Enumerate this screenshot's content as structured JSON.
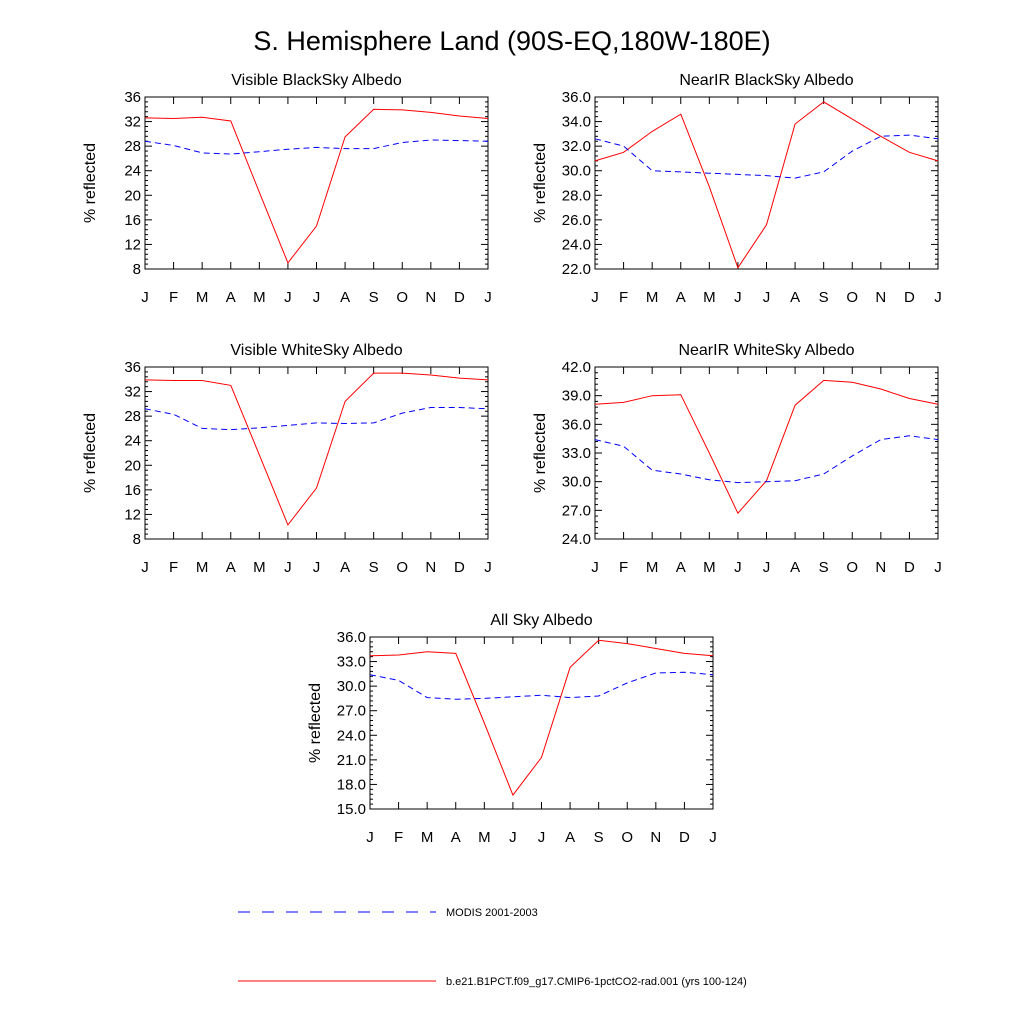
{
  "title": "S. Hemisphere Land (90S-EQ,180W-180E)",
  "months": [
    "J",
    "F",
    "M",
    "A",
    "M",
    "J",
    "J",
    "A",
    "S",
    "O",
    "N",
    "D",
    "J"
  ],
  "legend": [
    {
      "label": "MODIS 2001-2003",
      "color": "#0000ff",
      "style": "dashed"
    },
    {
      "label": "b.e21.B1PCT.f09_g17.CMIP6-1pctCO2-rad.001 (yrs 100-124)",
      "color": "#ff0000",
      "style": "solid"
    }
  ],
  "colors": {
    "model": "#ff0000",
    "modis": "#0000ff"
  },
  "chart_data": [
    {
      "type": "line",
      "title": "Visible BlackSky Albedo",
      "ylabel": "% reflected",
      "ylim": [
        8,
        36
      ],
      "yticks": [
        "8",
        "12",
        "16",
        "20",
        "24",
        "28",
        "32",
        "36"
      ],
      "x": [
        "J",
        "F",
        "M",
        "A",
        "M",
        "J",
        "J",
        "A",
        "S",
        "O",
        "N",
        "D",
        "J"
      ],
      "series": [
        {
          "values": [
            32.6,
            32.5,
            32.7,
            32.1,
            20.5,
            9.0,
            15.0,
            29.5,
            34.0,
            33.9,
            33.5,
            32.9,
            32.5
          ]
        },
        {
          "values": [
            28.8,
            28.1,
            26.9,
            26.7,
            27.1,
            27.5,
            27.8,
            27.6,
            27.6,
            28.6,
            29.0,
            28.9,
            28.8
          ]
        }
      ]
    },
    {
      "type": "line",
      "title": "NearIR BlackSky Albedo",
      "ylabel": "% reflected",
      "ylim": [
        22,
        36
      ],
      "yticks": [
        "22.0",
        "24.0",
        "26.0",
        "28.0",
        "30.0",
        "32.0",
        "34.0",
        "36.0"
      ],
      "x": [
        "J",
        "F",
        "M",
        "A",
        "M",
        "J",
        "J",
        "A",
        "S",
        "O",
        "N",
        "D",
        "J"
      ],
      "series": [
        {
          "values": [
            30.8,
            31.5,
            33.2,
            34.6,
            28.7,
            22.1,
            25.6,
            33.8,
            35.6,
            34.2,
            32.8,
            31.5,
            30.8
          ]
        },
        {
          "values": [
            32.6,
            32.0,
            30.0,
            29.9,
            29.8,
            29.7,
            29.6,
            29.4,
            29.9,
            31.6,
            32.8,
            32.9,
            32.6
          ]
        }
      ]
    },
    {
      "type": "line",
      "title": "Visible WhiteSky Albedo",
      "ylabel": "% reflected",
      "ylim": [
        8,
        36
      ],
      "yticks": [
        "8",
        "12",
        "16",
        "20",
        "24",
        "28",
        "32",
        "36"
      ],
      "x": [
        "J",
        "F",
        "M",
        "A",
        "M",
        "J",
        "J",
        "A",
        "S",
        "O",
        "N",
        "D",
        "J"
      ],
      "series": [
        {
          "values": [
            33.9,
            33.8,
            33.8,
            33.0,
            21.7,
            10.3,
            16.3,
            30.4,
            35.0,
            35.0,
            34.7,
            34.2,
            33.9
          ]
        },
        {
          "values": [
            29.2,
            28.3,
            26.0,
            25.8,
            26.1,
            26.5,
            26.9,
            26.8,
            26.9,
            28.5,
            29.4,
            29.4,
            29.2
          ]
        }
      ]
    },
    {
      "type": "line",
      "title": "NearIR WhiteSky Albedo",
      "ylabel": "% reflected",
      "ylim": [
        24,
        42
      ],
      "yticks": [
        "24.0",
        "27.0",
        "30.0",
        "33.0",
        "36.0",
        "39.0",
        "42.0"
      ],
      "x": [
        "J",
        "F",
        "M",
        "A",
        "M",
        "J",
        "J",
        "A",
        "S",
        "O",
        "N",
        "D",
        "J"
      ],
      "series": [
        {
          "values": [
            38.1,
            38.3,
            39.0,
            39.1,
            33.0,
            26.7,
            30.1,
            38.0,
            40.6,
            40.4,
            39.7,
            38.7,
            38.1
          ]
        },
        {
          "values": [
            34.4,
            33.7,
            31.2,
            30.8,
            30.2,
            29.9,
            30.0,
            30.1,
            30.8,
            32.7,
            34.4,
            34.8,
            34.4
          ]
        }
      ]
    },
    {
      "type": "line",
      "title": "All Sky Albedo",
      "ylabel": "% reflected",
      "ylim": [
        15,
        36
      ],
      "yticks": [
        "15.0",
        "18.0",
        "21.0",
        "24.0",
        "27.0",
        "30.0",
        "33.0",
        "36.0"
      ],
      "x": [
        "J",
        "F",
        "M",
        "A",
        "M",
        "J",
        "J",
        "A",
        "S",
        "O",
        "N",
        "D",
        "J"
      ],
      "series": [
        {
          "values": [
            33.7,
            33.8,
            34.2,
            34.0,
            25.5,
            16.7,
            21.3,
            32.3,
            35.6,
            35.2,
            34.6,
            34.0,
            33.7
          ]
        },
        {
          "values": [
            31.4,
            30.7,
            28.6,
            28.4,
            28.5,
            28.7,
            28.9,
            28.6,
            28.8,
            30.4,
            31.6,
            31.7,
            31.4
          ]
        }
      ]
    }
  ]
}
